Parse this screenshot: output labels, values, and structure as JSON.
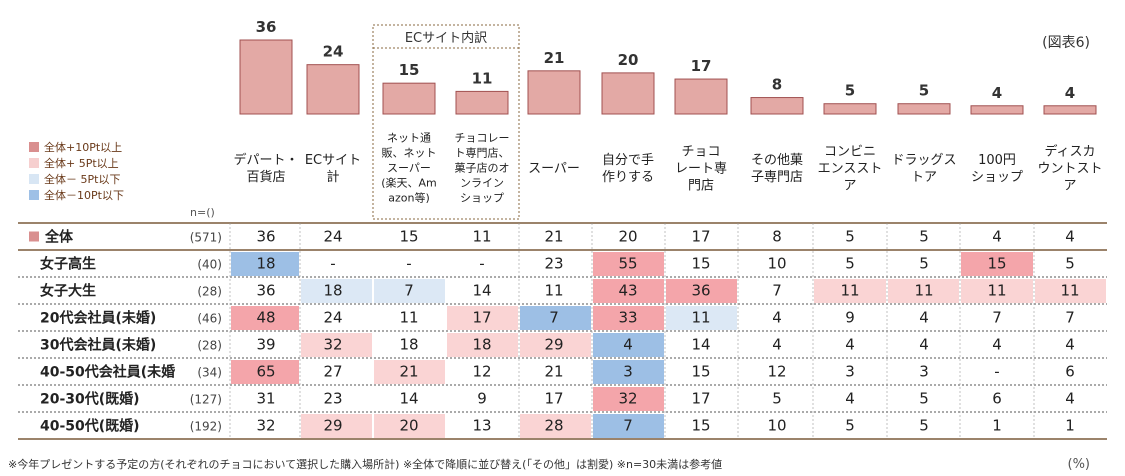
{
  "figure_label": "(図表6)",
  "unit_label": "(%)",
  "ec_group_label": "ECサイト内訳",
  "n_header": "n=()",
  "legend": [
    {
      "label": "全体+10Pt以上",
      "color": "#d98f8f"
    },
    {
      "label": "全体+ 5Pt以上",
      "color": "#f6cfcf"
    },
    {
      "label": "全体－ 5Pt以下",
      "color": "#d8e6f4"
    },
    {
      "label": "全体－10Pt以下",
      "color": "#9ec0e6"
    }
  ],
  "colors": {
    "bar": "#e3a9a5",
    "bar_stroke": "#a05050",
    "plus10": "#f4a5aa",
    "plus5": "#fad4d4",
    "minus5": "#dce8f5",
    "minus10": "#9dbfe5"
  },
  "footnote": "※今年プレゼントする予定の方(それぞれのチョコにおいて選択した購入場所計) ※全体で降順に並び替え(「その他」は割愛) ※n=30未満は参考値",
  "chart_data": {
    "type": "bar",
    "ylim": [
      0,
      36
    ],
    "categories": [
      "デパート・\n百貨店",
      "ECサイト\n計",
      "ネット通\n販、ネット\nスーパー\n(楽天、Am\nazon等)",
      "チョコレー\nト専門店、\n菓子店のオ\nンライン\nショップ",
      "スーパー",
      "自分で手\n作りする",
      "チョコ\nレート専\n門店",
      "その他菓\n子専門店",
      "コンビニ\nエンススト\nア",
      "ドラッグス\nトア",
      "100円\nショップ",
      "ディスカ\nウントスト\nア"
    ],
    "values": [
      36,
      24,
      15,
      11,
      21,
      20,
      17,
      8,
      5,
      5,
      4,
      4
    ],
    "table": {
      "rows": [
        {
          "label": "全体",
          "n": "(571)",
          "values": [
            "36",
            "24",
            "15",
            "11",
            "21",
            "20",
            "17",
            "8",
            "5",
            "5",
            "4",
            "4"
          ],
          "highlight": [
            "",
            "",
            "",
            "",
            "",
            "",
            "",
            "",
            "",
            "",
            "",
            ""
          ]
        },
        {
          "label": "女子高生",
          "n": "(40)",
          "values": [
            "18",
            "-",
            "-",
            "-",
            "23",
            "55",
            "15",
            "10",
            "5",
            "5",
            "15",
            "5"
          ],
          "highlight": [
            "m10",
            "",
            "",
            "",
            "",
            "p10",
            "",
            "",
            "",
            "",
            "p10",
            ""
          ]
        },
        {
          "label": "女子大生",
          "n": "(28)",
          "values": [
            "36",
            "18",
            "7",
            "14",
            "11",
            "43",
            "36",
            "7",
            "11",
            "11",
            "11",
            "11"
          ],
          "highlight": [
            "",
            "m5",
            "m5",
            "",
            "",
            "p10",
            "p10",
            "",
            "p5",
            "p5",
            "p5",
            "p5"
          ]
        },
        {
          "label": "20代会社員(未婚)",
          "n": "(46)",
          "values": [
            "48",
            "24",
            "11",
            "17",
            "7",
            "33",
            "11",
            "4",
            "9",
            "4",
            "7",
            "7"
          ],
          "highlight": [
            "p10",
            "",
            "",
            "p5",
            "m10",
            "p10",
            "m5",
            "",
            "",
            "",
            "",
            ""
          ]
        },
        {
          "label": "30代会社員(未婚)",
          "n": "(28)",
          "values": [
            "39",
            "32",
            "18",
            "18",
            "29",
            "4",
            "14",
            "4",
            "4",
            "4",
            "4",
            "4"
          ],
          "highlight": [
            "",
            "p5",
            "",
            "p5",
            "p5",
            "m10",
            "",
            "",
            "",
            "",
            "",
            ""
          ]
        },
        {
          "label": "40-50代会社員(未婚",
          "n": "(34)",
          "values": [
            "65",
            "27",
            "21",
            "12",
            "21",
            "3",
            "15",
            "12",
            "3",
            "3",
            "-",
            "6"
          ],
          "highlight": [
            "p10",
            "",
            "p5",
            "",
            "",
            "m10",
            "",
            "",
            "",
            "",
            "",
            ""
          ]
        },
        {
          "label": "20-30代(既婚)",
          "n": "(127)",
          "values": [
            "31",
            "23",
            "14",
            "9",
            "17",
            "32",
            "17",
            "5",
            "4",
            "5",
            "6",
            "4"
          ],
          "highlight": [
            "",
            "",
            "",
            "",
            "",
            "p10",
            "",
            "",
            "",
            "",
            "",
            ""
          ]
        },
        {
          "label": "40-50代(既婚)",
          "n": "(192)",
          "values": [
            "32",
            "29",
            "20",
            "13",
            "28",
            "7",
            "15",
            "10",
            "5",
            "5",
            "1",
            "1"
          ],
          "highlight": [
            "",
            "p5",
            "p5",
            "",
            "p5",
            "m10",
            "",
            "",
            "",
            "",
            "",
            ""
          ]
        }
      ]
    }
  }
}
